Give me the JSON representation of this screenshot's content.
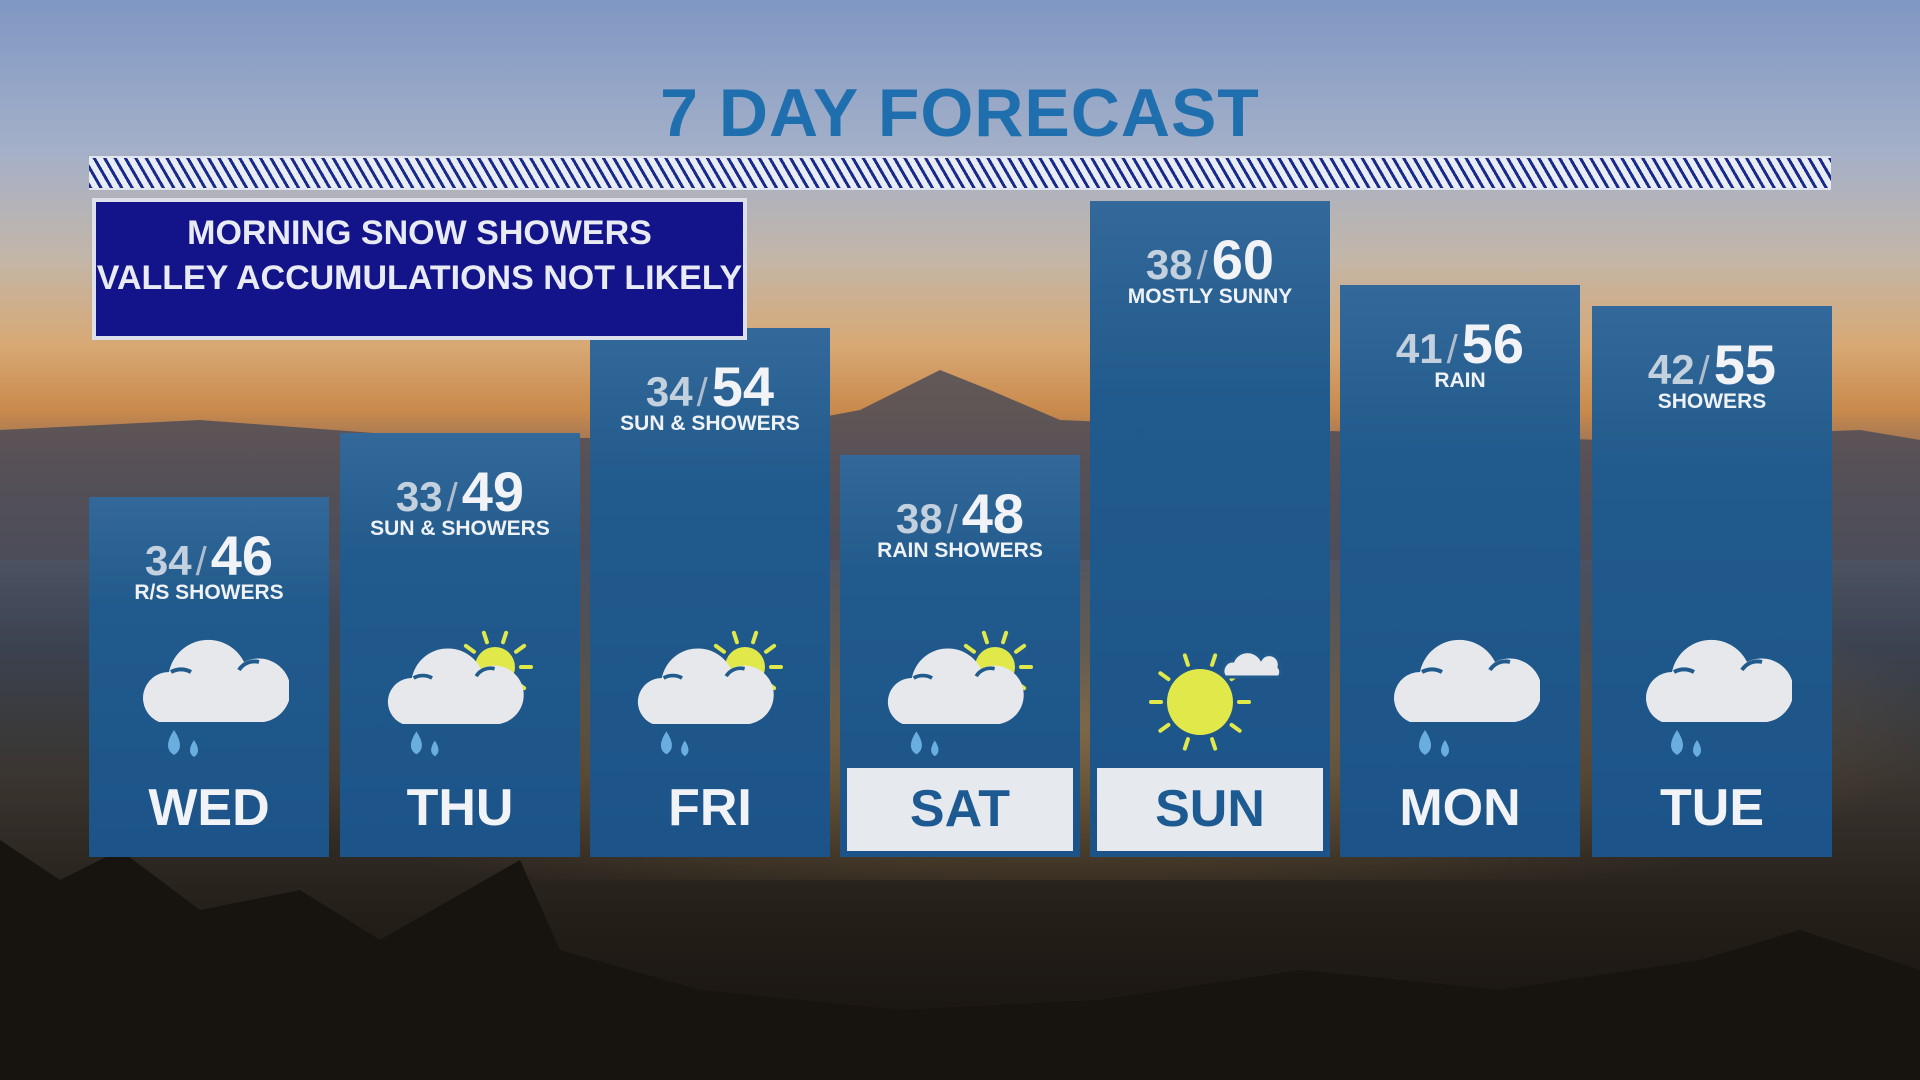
{
  "title": "7 DAY FORECAST",
  "note": {
    "line1": "MORNING SNOW SHOWERS",
    "line2": "VALLEY ACCUMULATIONS NOT LIKELY"
  },
  "colors": {
    "title": "#1f6fae",
    "column": "#215a8c",
    "note_bg": "#14148a",
    "sun": "#e0e84a",
    "rain": "#6aaee0",
    "cloud": "#e6e8ec"
  },
  "days": [
    {
      "day": "WED",
      "low": "34",
      "high": "46",
      "condition": "R/S SHOWERS",
      "icon": "rain-cloud-icon",
      "selected": false
    },
    {
      "day": "THU",
      "low": "33",
      "high": "49",
      "condition": "SUN & SHOWERS",
      "icon": "sun-cloud-rain-icon",
      "selected": false
    },
    {
      "day": "FRI",
      "low": "34",
      "high": "54",
      "condition": "SUN & SHOWERS",
      "icon": "sun-cloud-rain-icon",
      "selected": false
    },
    {
      "day": "SAT",
      "low": "38",
      "high": "48",
      "condition": "RAIN SHOWERS",
      "icon": "sun-cloud-rain-icon",
      "selected": true
    },
    {
      "day": "SUN",
      "low": "38",
      "high": "60",
      "condition": "MOSTLY SUNNY",
      "icon": "mostly-sunny-icon",
      "selected": true
    },
    {
      "day": "MON",
      "low": "41",
      "high": "56",
      "condition": "RAIN",
      "icon": "rain-cloud-icon",
      "selected": false
    },
    {
      "day": "TUE",
      "low": "42",
      "high": "55",
      "condition": "SHOWERS",
      "icon": "rain-cloud-icon",
      "selected": false
    }
  ]
}
